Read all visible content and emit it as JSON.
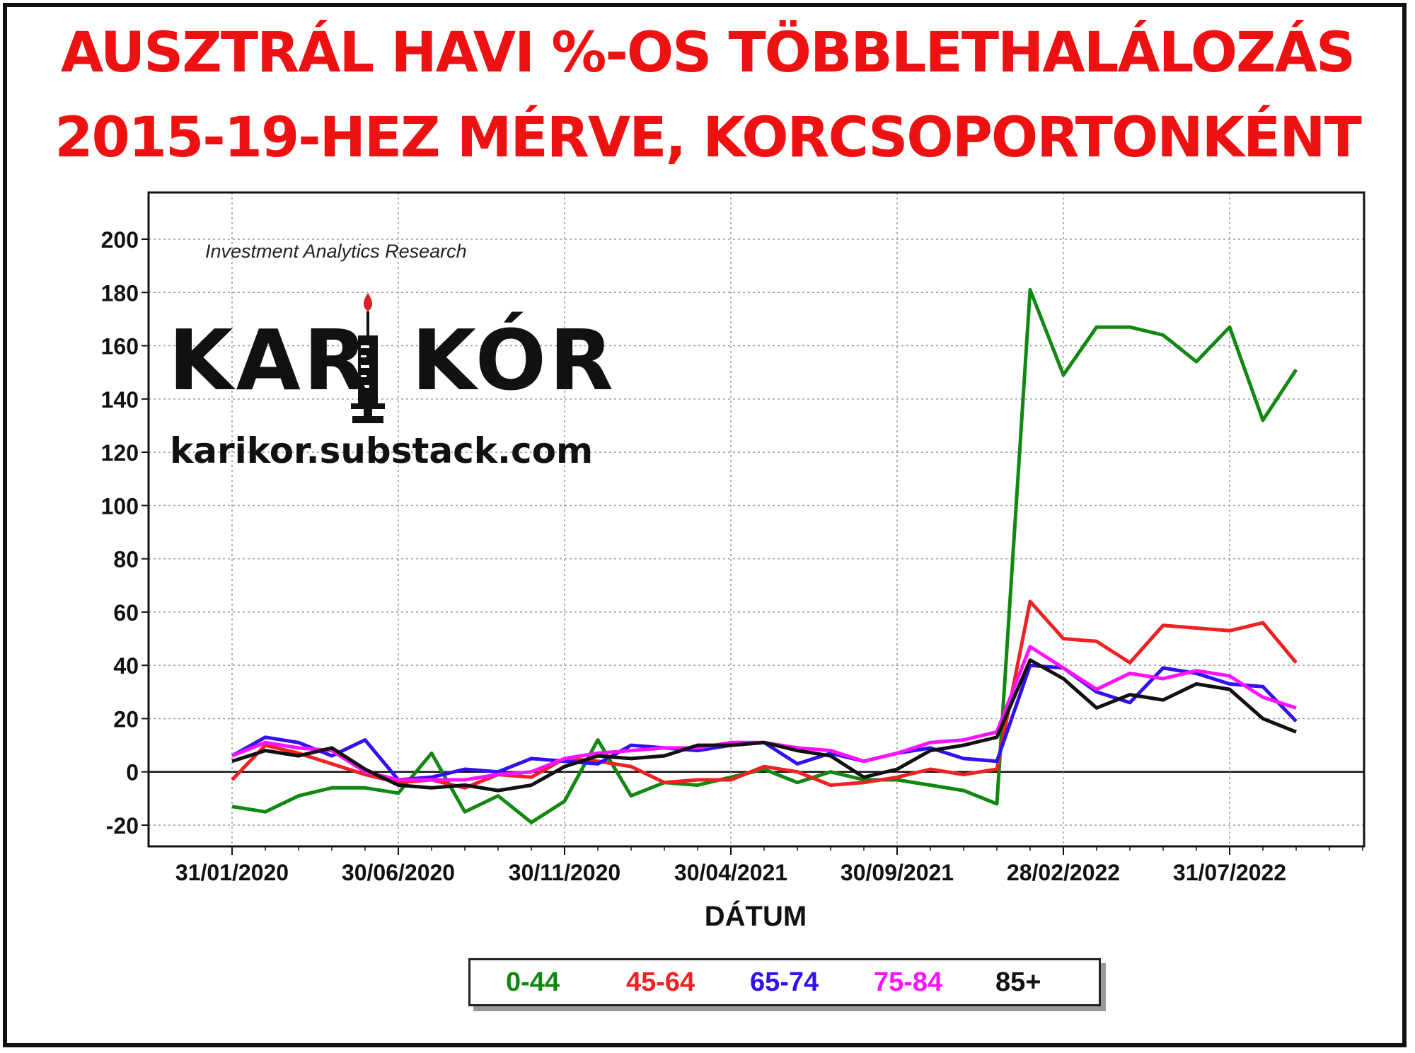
{
  "title_line1": "AUSZTRÁL HAVI %-OS TÖBBLETHALÁLOZÁS",
  "title_line2": "2015-19-HEZ MÉRVE, KORCSOPORTONKÉNT",
  "watermark": {
    "research": "Investment Analytics Research",
    "brand": "KARIKÓR",
    "url": "karikor.substack.com"
  },
  "chart_data": {
    "type": "line",
    "xlabel": "DÁTUM",
    "ylabel": "",
    "ylim": [
      -20,
      200
    ],
    "yticks": [
      -20,
      0,
      20,
      40,
      60,
      80,
      100,
      120,
      140,
      160,
      180,
      200
    ],
    "x": [
      "2020-01",
      "2020-02",
      "2020-03",
      "2020-04",
      "2020-05",
      "2020-06",
      "2020-07",
      "2020-08",
      "2020-09",
      "2020-10",
      "2020-11",
      "2020-12",
      "2021-01",
      "2021-02",
      "2021-03",
      "2021-04",
      "2021-05",
      "2021-06",
      "2021-07",
      "2021-08",
      "2021-09",
      "2021-10",
      "2021-11",
      "2021-12",
      "2022-01",
      "2022-02",
      "2022-03",
      "2022-04",
      "2022-05",
      "2022-06",
      "2022-07",
      "2022-08",
      "2022-09"
    ],
    "xtick_labels": [
      {
        "index": 0,
        "label": "31/01/2020"
      },
      {
        "index": 5,
        "label": "30/06/2020"
      },
      {
        "index": 10,
        "label": "30/11/2020"
      },
      {
        "index": 15,
        "label": "30/04/2021"
      },
      {
        "index": 20,
        "label": "30/09/2021"
      },
      {
        "index": 25,
        "label": "28/02/2022"
      },
      {
        "index": 30,
        "label": "31/07/2022"
      }
    ],
    "grid": true,
    "legend_position": "bottom",
    "series": [
      {
        "name": "0-44",
        "color": "#118811",
        "values": [
          -13,
          -15,
          -9,
          -6,
          -6,
          -8,
          7,
          -15,
          -9,
          -19,
          -11,
          12,
          -9,
          -4,
          -5,
          -2,
          1,
          -4,
          0,
          -3,
          -3,
          -5,
          -7,
          -12,
          181,
          149,
          167,
          167,
          164,
          154,
          167,
          132,
          151
        ]
      },
      {
        "name": "45-64",
        "color": "#ee2222",
        "values": [
          -3,
          10,
          7,
          3,
          -1,
          -4,
          -3,
          -6,
          -1,
          -2,
          5,
          4,
          2,
          -4,
          -3,
          -3,
          2,
          0,
          -5,
          -4,
          -2,
          1,
          -1,
          1,
          64,
          50,
          49,
          41,
          55,
          54,
          53,
          56,
          41
        ]
      },
      {
        "name": "65-74",
        "color": "#3311ee",
        "values": [
          6,
          13,
          11,
          6,
          12,
          -3,
          -2,
          1,
          0,
          5,
          4,
          3,
          10,
          9,
          8,
          10,
          11,
          3,
          7,
          4,
          7,
          9,
          5,
          4,
          40,
          39,
          30,
          26,
          39,
          37,
          33,
          32,
          19
        ]
      },
      {
        "name": "75-84",
        "color": "#ff11ff",
        "values": [
          6,
          11,
          9,
          8,
          0,
          -3,
          -3,
          -3,
          -1,
          0,
          5,
          7,
          8,
          9,
          9,
          11,
          11,
          9,
          8,
          4,
          7,
          11,
          12,
          15,
          47,
          39,
          31,
          37,
          35,
          38,
          36,
          28,
          24
        ]
      },
      {
        "name": "85+",
        "color": "#111111",
        "values": [
          4,
          8,
          6,
          9,
          1,
          -5,
          -6,
          -5,
          -7,
          -5,
          2,
          6,
          5,
          6,
          10,
          10,
          11,
          8,
          6,
          -2,
          1,
          8,
          10,
          13,
          42,
          35,
          24,
          29,
          27,
          33,
          31,
          20,
          15
        ]
      }
    ]
  }
}
